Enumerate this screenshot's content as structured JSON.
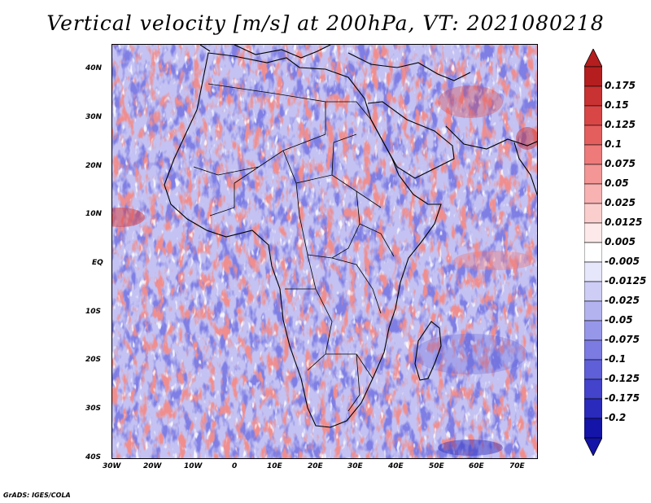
{
  "title": "Vertical velocity [m/s] at 200hPa, VT: 2021080218",
  "credit": "GrADS: IGES/COLA",
  "map": {
    "lat_labels": [
      "40N",
      "30N",
      "20N",
      "10N",
      "EQ",
      "10S",
      "20S",
      "30S",
      "40S"
    ],
    "lon_labels": [
      "30W",
      "20W",
      "10W",
      "0",
      "10E",
      "20E",
      "30E",
      "40E",
      "50E",
      "60E",
      "70E"
    ]
  },
  "colorbar": {
    "labels": [
      "0.175",
      "0.15",
      "0.125",
      "0.1",
      "0.075",
      "0.05",
      "0.025",
      "0.0125",
      "0.005",
      "-0.005",
      "-0.0125",
      "-0.025",
      "-0.05",
      "-0.075",
      "-0.1",
      "-0.125",
      "-0.175",
      "-0.2"
    ],
    "colors": [
      "#b51e1e",
      "#c93232",
      "#d94646",
      "#e55e5e",
      "#ee7a7a",
      "#f49696",
      "#f8b2b2",
      "#fbcece",
      "#fde9e9",
      "#ffffff",
      "#e7e7fb",
      "#cdcdf6",
      "#b3b3f0",
      "#9797ea",
      "#7b7be2",
      "#5f5fd8",
      "#4343cc",
      "#2a2abc",
      "#1414a8"
    ]
  }
}
